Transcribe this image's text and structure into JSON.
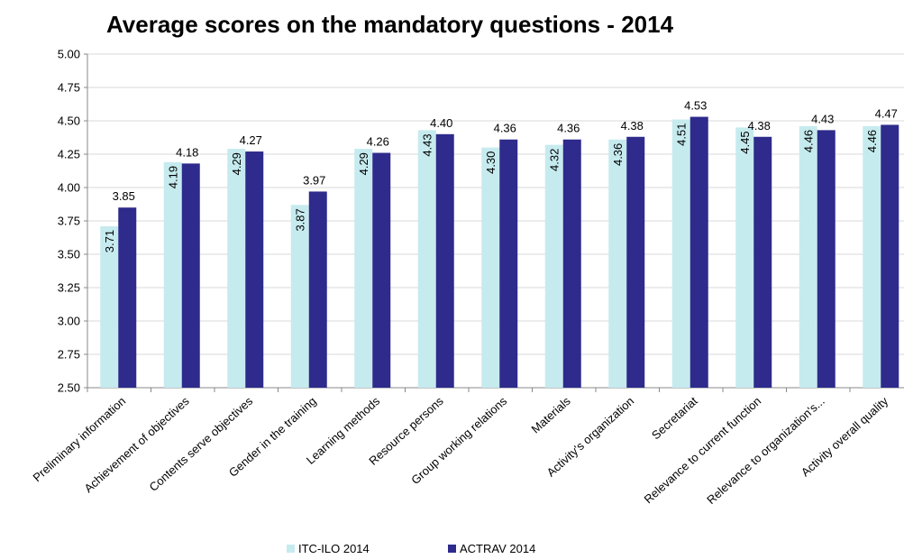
{
  "chart_data": {
    "type": "bar",
    "title": "Average scores on the mandatory questions - 2014",
    "categories": [
      "Preliminary information",
      "Achievement of objectives",
      "Contents serve objectives",
      "Gender in the training",
      "Learning methods",
      "Resource persons",
      "Group working relations",
      "Materials",
      "Activity's organization",
      "Secretariat",
      "Relevance to current function",
      "Relevance to organization's...",
      "Activity overall quality"
    ],
    "series": [
      {
        "name": "ITC-ILO 2014",
        "color": "#c6ebef",
        "labels": [
          "3.71",
          "4.19",
          "4.29",
          "3.87",
          "4.29",
          "4.43",
          "4.30",
          "4.32",
          "4.36",
          "4.51",
          "4.45",
          "4.46",
          "4.46"
        ],
        "values": [
          3.71,
          4.19,
          4.29,
          3.87,
          4.29,
          4.43,
          4.3,
          4.32,
          4.36,
          4.51,
          4.45,
          4.46,
          4.46
        ]
      },
      {
        "name": "ACTRAV 2014",
        "color": "#2e2b8c",
        "labels": [
          "3.85",
          "4.18",
          "4.27",
          "3.97",
          "4.26",
          "4.40",
          "4.36",
          "4.36",
          "4.38",
          "4.53",
          "4.38",
          "4.43",
          "4.47"
        ],
        "values": [
          3.85,
          4.18,
          4.27,
          3.97,
          4.26,
          4.4,
          4.36,
          4.36,
          4.38,
          4.53,
          4.38,
          4.43,
          4.47
        ]
      }
    ],
    "y_ticks": [
      "5.00",
      "4.75",
      "4.50",
      "4.25",
      "4.00",
      "3.75",
      "3.50",
      "3.25",
      "3.00",
      "2.75",
      "2.50"
    ],
    "ylim": [
      2.5,
      5.0
    ],
    "grid": true,
    "legend_position": "bottom"
  }
}
